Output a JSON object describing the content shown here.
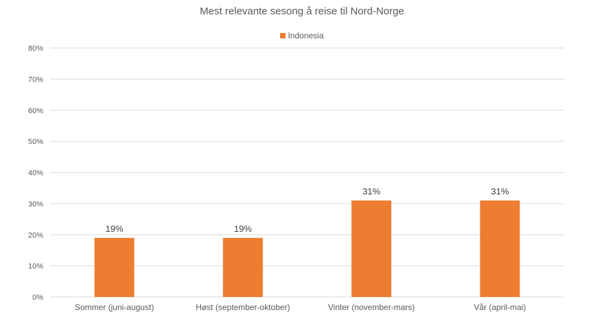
{
  "chart_data": {
    "type": "bar",
    "title": "Mest relevante sesong å reise til Nord-Norge",
    "categories": [
      "Sommer (juni-august)",
      "Høst (september-oktober)",
      "Vinter (november-mars)",
      "Vår (april-mai)"
    ],
    "series": [
      {
        "name": "Indonesia",
        "values": [
          19,
          19,
          31,
          31
        ],
        "color": "#ED7D31"
      }
    ],
    "data_labels": [
      "19%",
      "19%",
      "31%",
      "31%"
    ],
    "ylim": [
      0,
      80
    ],
    "yticks": [
      0,
      10,
      20,
      30,
      40,
      50,
      60,
      70,
      80
    ],
    "ytick_labels": [
      "0%",
      "10%",
      "20%",
      "30%",
      "40%",
      "50%",
      "60%",
      "70%",
      "80%"
    ],
    "grid": true,
    "legend": "top-center",
    "gridline_color": "#D9D9D9"
  }
}
